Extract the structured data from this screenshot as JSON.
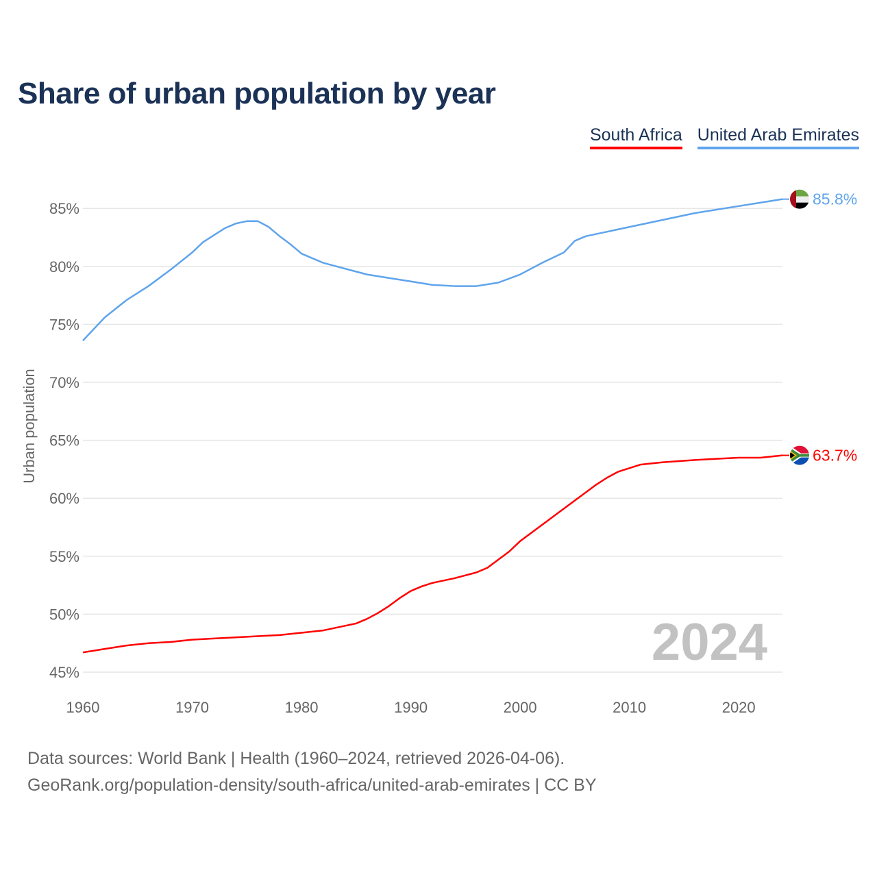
{
  "chart_data": {
    "type": "line",
    "title": "Share of urban population by year",
    "xlabel": "",
    "ylabel": "Urban population",
    "xlim": [
      1960,
      2024
    ],
    "ylim": [
      45,
      87
    ],
    "xticks": [
      1960,
      1970,
      1980,
      1990,
      2000,
      2010,
      2020
    ],
    "yticks": [
      45,
      50,
      55,
      60,
      65,
      70,
      75,
      80,
      85
    ],
    "ytick_labels": [
      "45%",
      "50%",
      "55%",
      "60%",
      "65%",
      "70%",
      "75%",
      "80%",
      "85%"
    ],
    "grid": true,
    "legend_position": "top-right",
    "year_watermark": "2024",
    "series": [
      {
        "name": "South Africa",
        "color": "#ff0000",
        "end_label": "63.7%",
        "flag": "south-africa",
        "x": [
          1960,
          1962,
          1964,
          1966,
          1968,
          1970,
          1972,
          1974,
          1976,
          1978,
          1980,
          1982,
          1984,
          1985,
          1986,
          1987,
          1988,
          1989,
          1990,
          1991,
          1992,
          1994,
          1996,
          1997,
          1998,
          1999,
          2000,
          2002,
          2004,
          2006,
          2007,
          2008,
          2009,
          2011,
          2013,
          2016,
          2018,
          2020,
          2022,
          2024
        ],
        "y": [
          46.7,
          47.0,
          47.3,
          47.5,
          47.6,
          47.8,
          47.9,
          48.0,
          48.1,
          48.2,
          48.4,
          48.6,
          49.0,
          49.2,
          49.6,
          50.1,
          50.7,
          51.4,
          52.0,
          52.4,
          52.7,
          53.1,
          53.6,
          54.0,
          54.7,
          55.4,
          56.3,
          57.7,
          59.1,
          60.5,
          61.2,
          61.8,
          62.3,
          62.9,
          63.1,
          63.3,
          63.4,
          63.5,
          63.5,
          63.7
        ]
      },
      {
        "name": "United Arab Emirates",
        "color": "#5fa4ec",
        "end_label": "85.8%",
        "flag": "united-arab-emirates",
        "x": [
          1960,
          1962,
          1964,
          1966,
          1968,
          1970,
          1971,
          1973,
          1974,
          1975,
          1976,
          1977,
          1978,
          1979,
          1980,
          1982,
          1984,
          1986,
          1988,
          1990,
          1992,
          1994,
          1996,
          1998,
          2000,
          2002,
          2004,
          2005,
          2006,
          2008,
          2010,
          2012,
          2014,
          2016,
          2018,
          2020,
          2022,
          2024
        ],
        "y": [
          73.6,
          75.6,
          77.1,
          78.3,
          79.7,
          81.2,
          82.1,
          83.3,
          83.7,
          83.9,
          83.9,
          83.4,
          82.6,
          81.9,
          81.1,
          80.3,
          79.8,
          79.3,
          79.0,
          78.7,
          78.4,
          78.3,
          78.3,
          78.6,
          79.3,
          80.3,
          81.2,
          82.2,
          82.6,
          83.0,
          83.4,
          83.8,
          84.2,
          84.6,
          84.9,
          85.2,
          85.5,
          85.8
        ]
      }
    ]
  },
  "footer": {
    "line1": "Data sources: World Bank | Health (1960–2024, retrieved 2026-04-06).",
    "line2": "GeoRank.org/population-density/south-africa/united-arab-emirates | CC BY"
  }
}
